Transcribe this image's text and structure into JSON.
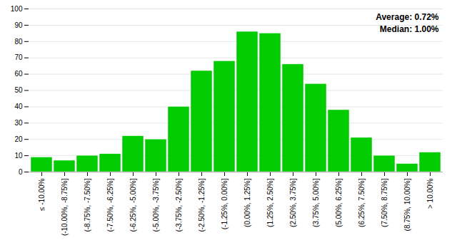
{
  "chart_data": {
    "type": "bar",
    "categories": [
      "≤ -10.00%",
      "(-10.00%, -8.75%]",
      "(-8.75%, -7.50%]",
      "(-7.50%, -6.25%]",
      "(-6.25%, -5.00%]",
      "(-5.00%, -3.75%]",
      "(-3.75%, -2.50%]",
      "(-2.50%, -1.25%]",
      "(-1.25%, 0.00%]",
      "(0.00%, 1.25%]",
      "(1.25%, 2.50%]",
      "(2.50%, 3.75%]",
      "(3.75%, 5.00%]",
      "(5.00%, 6.25%]",
      "(6.25%, 7.50%]",
      "(7.50%, 8.75%]",
      "(8.75%, 10.00%]",
      "> 10.00%"
    ],
    "values": [
      9,
      7,
      10,
      11,
      22,
      20,
      40,
      62,
      68,
      86,
      85,
      66,
      54,
      38,
      21,
      10,
      5,
      12
    ],
    "color": "#00CC00",
    "ylim": [
      0,
      100
    ],
    "yticks": [
      0,
      10,
      20,
      30,
      40,
      50,
      60,
      70,
      80,
      90,
      100
    ],
    "grid": true,
    "annotations": [
      "Average: 0.72%",
      "Median: 1.00%"
    ]
  }
}
